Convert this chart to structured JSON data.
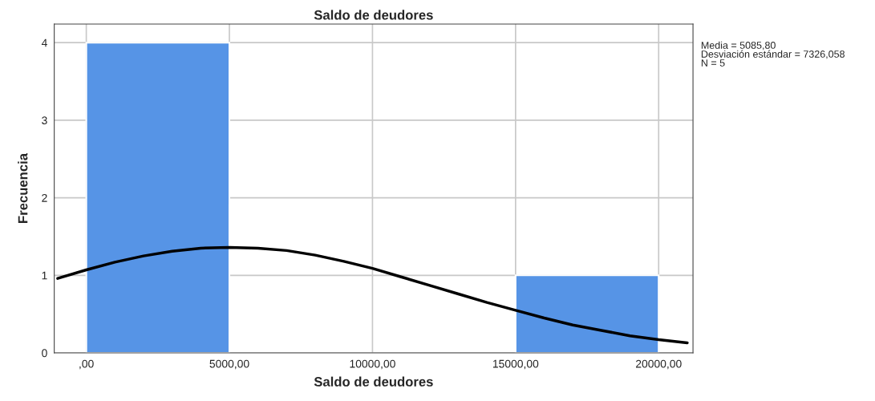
{
  "chart_data": {
    "type": "histogram",
    "title": "Saldo de deudores",
    "xlabel": "Saldo de deudores",
    "ylabel": "Frecuencia",
    "series": [
      {
        "type": "histogram",
        "bins": [
          0,
          5000,
          10000,
          15000,
          20000
        ],
        "values": [
          4,
          0,
          0,
          1
        ],
        "color": "#5694e6"
      },
      {
        "type": "line",
        "color": "#000000",
        "x": [
          -1000,
          0,
          1000,
          2000,
          3000,
          4000,
          5000,
          6000,
          7000,
          8000,
          9000,
          10000,
          11000,
          12000,
          13000,
          14000,
          15000,
          16000,
          17000,
          18000,
          19000,
          20000,
          21000
        ],
        "values": [
          0.96,
          1.07,
          1.17,
          1.25,
          1.31,
          1.35,
          1.36,
          1.35,
          1.32,
          1.26,
          1.18,
          1.09,
          0.98,
          0.87,
          0.76,
          0.65,
          0.55,
          0.45,
          0.36,
          0.29,
          0.22,
          0.17,
          0.13
        ]
      }
    ],
    "xlim": [
      -1120,
      21200
    ],
    "ylim": [
      0,
      4.24
    ],
    "xticks": [
      {
        "value": 0,
        "label": ",00"
      },
      {
        "value": 5000,
        "label": "5000,00"
      },
      {
        "value": 10000,
        "label": "10000,00"
      },
      {
        "value": 15000,
        "label": "15000,00"
      },
      {
        "value": 20000,
        "label": "20000,00"
      }
    ],
    "yticks": [
      0,
      1,
      2,
      3,
      4
    ],
    "grid": true,
    "annotations": [
      "Media = 5085,80",
      "Desviación estándar = 7326,058",
      "N = 5"
    ]
  }
}
